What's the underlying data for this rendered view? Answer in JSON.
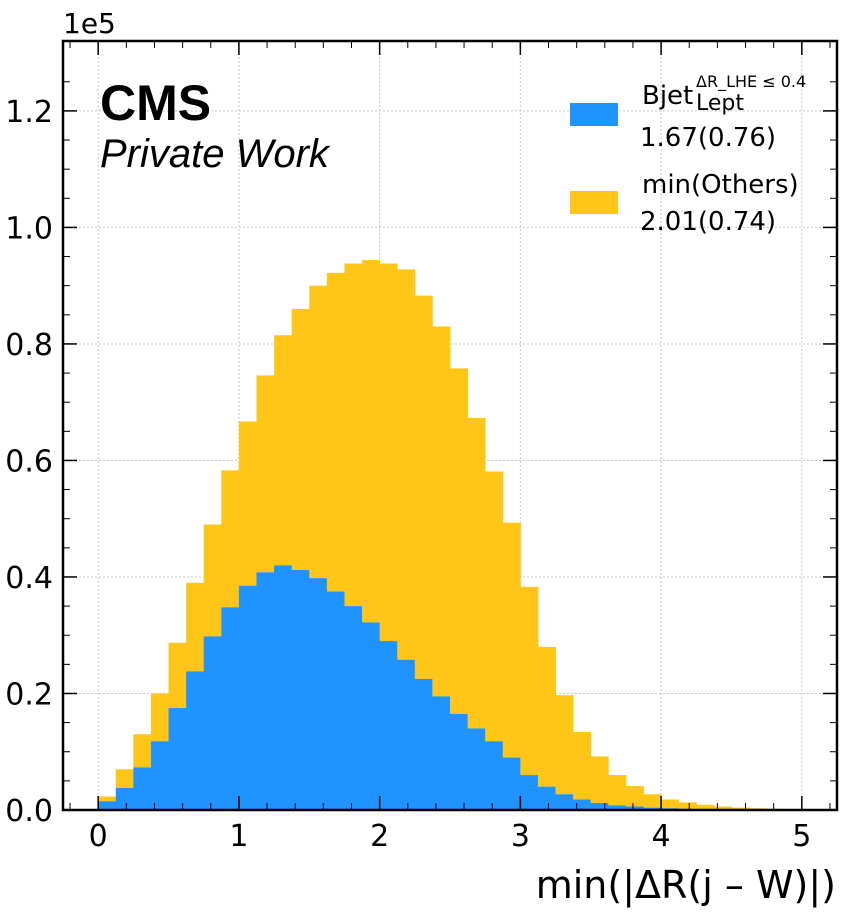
{
  "chart_data": {
    "type": "bar",
    "stacked": true,
    "histogram": true,
    "bin_width": 0.125,
    "bin_start": 0.0,
    "x_range": [
      -0.25,
      5.25
    ],
    "y_range": [
      0,
      1.32
    ],
    "y_scale_label": "1e5",
    "xlabel": "min(|ΔR(j – W)|)",
    "x_ticks": [
      0,
      1,
      2,
      3,
      4,
      5
    ],
    "x_tick_labels": [
      "0",
      "1",
      "2",
      "3",
      "4",
      "5"
    ],
    "y_ticks": [
      0.0,
      0.2,
      0.4,
      0.6,
      0.8,
      1.0,
      1.2
    ],
    "y_tick_labels": [
      "0.0",
      "0.2",
      "0.4",
      "0.6",
      "0.8",
      "1.0",
      "1.2"
    ],
    "grid": true,
    "legend_position": "top-right",
    "series": [
      {
        "name_main": "Bjet",
        "name_sup": "ΔR_LHE ≤ 0.4",
        "name_sub": "Lept",
        "stat": "1.67(0.76)",
        "color": "#1f93ff",
        "values": [
          0.015,
          0.038,
          0.073,
          0.118,
          0.175,
          0.238,
          0.298,
          0.348,
          0.385,
          0.408,
          0.42,
          0.412,
          0.398,
          0.375,
          0.35,
          0.322,
          0.29,
          0.258,
          0.225,
          0.195,
          0.165,
          0.14,
          0.118,
          0.09,
          0.06,
          0.04,
          0.027,
          0.018,
          0.012,
          0.008,
          0.006,
          0.004,
          0.003,
          0.002,
          0.0015,
          0.001,
          0.0008,
          0.0005,
          0.0004,
          0.0002
        ]
      },
      {
        "name_main": "min(Others)",
        "stat": "2.01(0.74)",
        "color": "#ffc617",
        "values": [
          0.008,
          0.032,
          0.057,
          0.082,
          0.112,
          0.152,
          0.192,
          0.235,
          0.282,
          0.338,
          0.395,
          0.448,
          0.502,
          0.547,
          0.588,
          0.622,
          0.648,
          0.67,
          0.658,
          0.635,
          0.593,
          0.533,
          0.463,
          0.403,
          0.323,
          0.24,
          0.17,
          0.116,
          0.08,
          0.052,
          0.035,
          0.023,
          0.015,
          0.011,
          0.0075,
          0.005,
          0.0032,
          0.0025,
          0.0016,
          0.0008
        ]
      }
    ]
  },
  "cms": {
    "title": "CMS",
    "subtitle": "Private Work"
  }
}
